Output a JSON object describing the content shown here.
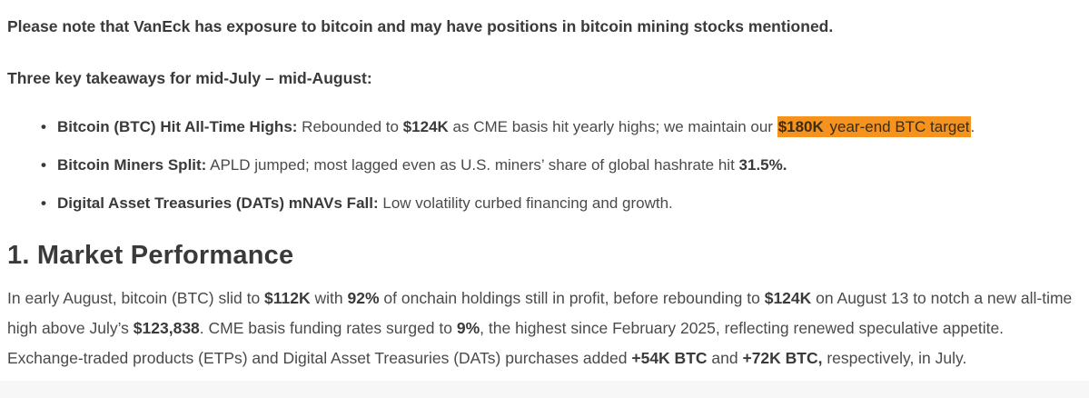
{
  "colors": {
    "highlight": "#f6921e",
    "body_text": "#4a4a4a",
    "heading_text": "#3a3a3a",
    "bottom_band": "#f7f7f7"
  },
  "article": {
    "disclaimer": "Please note that VanEck has exposure to bitcoin and may have positions in bitcoin mining stocks mentioned.",
    "takeaways_heading": "Three key takeaways for mid-July – mid-August:",
    "bullets": [
      {
        "segments": [
          {
            "t": "Bitcoin (BTC) Hit All-Time Highs:",
            "b": true
          },
          {
            "t": " Rebounded to "
          },
          {
            "t": "$124K",
            "b": true
          },
          {
            "t": " as CME basis hit yearly highs; we maintain our "
          },
          {
            "t": "$180K",
            "b": true,
            "h": true
          },
          {
            "t": " year-end BTC target",
            "h": true
          },
          {
            "t": "."
          }
        ]
      },
      {
        "segments": [
          {
            "t": "Bitcoin Miners Split:",
            "b": true
          },
          {
            "t": " APLD jumped; most lagged even as U.S. miners’ share of global hashrate hit "
          },
          {
            "t": "31.5%.",
            "b": true
          }
        ]
      },
      {
        "segments": [
          {
            "t": "Digital Asset Treasuries (DATs) mNAVs Fall:",
            "b": true
          },
          {
            "t": " Low volatility curbed financing and growth."
          }
        ]
      }
    ],
    "section_heading": "1. Market Performance",
    "paragraph": {
      "segments": [
        {
          "t": "In early August, bitcoin (BTC) slid to "
        },
        {
          "t": "$112K",
          "b": true
        },
        {
          "t": " with "
        },
        {
          "t": "92%",
          "b": true
        },
        {
          "t": " of onchain holdings still in profit, before rebounding to "
        },
        {
          "t": "$124K",
          "b": true
        },
        {
          "t": " on August 13 to notch a new all-time high above July’s "
        },
        {
          "t": "$123,838",
          "b": true
        },
        {
          "t": ". CME basis funding rates surged to "
        },
        {
          "t": "9%",
          "b": true
        },
        {
          "t": ", the highest since February 2025, reflecting renewed speculative appetite. Exchange-traded products (ETPs) and Digital Asset Treasuries (DATs) purchases added "
        },
        {
          "t": "+54K BTC",
          "b": true
        },
        {
          "t": " and "
        },
        {
          "t": "+72K BTC,",
          "b": true
        },
        {
          "t": " respectively, in July."
        }
      ]
    }
  }
}
